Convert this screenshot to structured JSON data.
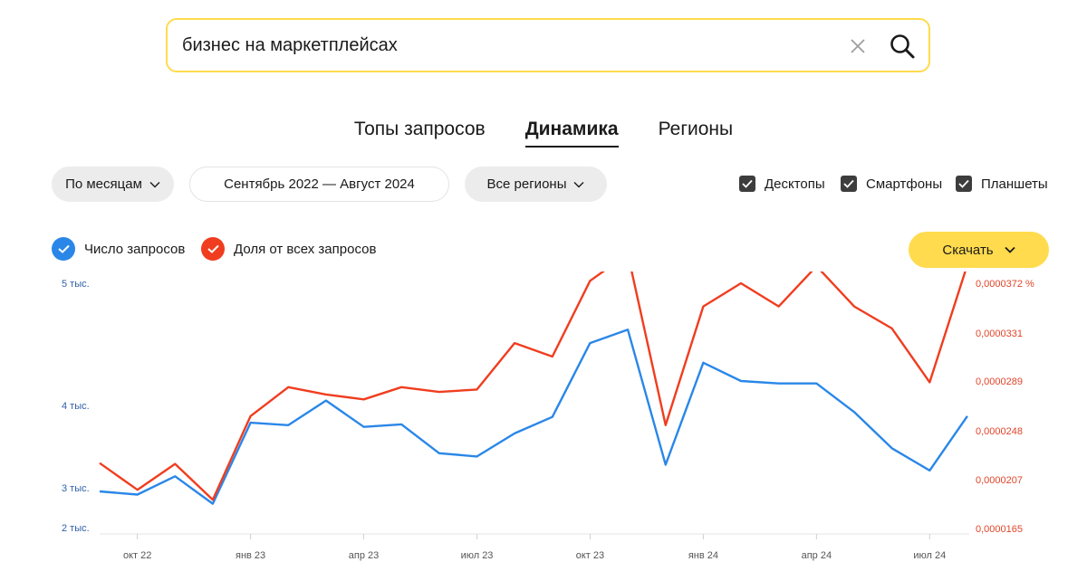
{
  "search": {
    "query": "бизнес на маркетплейсах"
  },
  "tabs": [
    {
      "label": "Топы запросов",
      "active": false
    },
    {
      "label": "Динамика",
      "active": true
    },
    {
      "label": "Регионы",
      "active": false
    }
  ],
  "filters": {
    "period_label": "По месяцам",
    "date_range": "Сентябрь 2022 — Август 2024",
    "region_label": "Все регионы"
  },
  "devices": [
    {
      "label": "Десктопы",
      "checked": true
    },
    {
      "label": "Смартфоны",
      "checked": true
    },
    {
      "label": "Планшеты",
      "checked": true
    }
  ],
  "legend": {
    "requests_label": "Число запросов",
    "share_label": "Доля от всех запросов"
  },
  "download_label": "Скачать",
  "colors": {
    "accent": "#ffdb4d",
    "requests": "#2a87e8",
    "share": "#f03d1f"
  },
  "chart_data": {
    "type": "line",
    "x": [
      "2022-09",
      "2022-10",
      "2022-11",
      "2022-12",
      "2023-01",
      "2023-02",
      "2023-03",
      "2023-04",
      "2023-05",
      "2023-06",
      "2023-07",
      "2023-08",
      "2023-09",
      "2023-10",
      "2023-11",
      "2023-12",
      "2024-01",
      "2024-02",
      "2024-03",
      "2024-04",
      "2024-05",
      "2024-06",
      "2024-07",
      "2024-08"
    ],
    "x_tick_labels": [
      {
        "x": "2022-10",
        "label": "окт 22"
      },
      {
        "x": "2023-01",
        "label": "янв 23"
      },
      {
        "x": "2023-04",
        "label": "апр 23"
      },
      {
        "x": "2023-07",
        "label": "июл 23"
      },
      {
        "x": "2023-10",
        "label": "окт 23"
      },
      {
        "x": "2024-01",
        "label": "янв 24"
      },
      {
        "x": "2024-04",
        "label": "апр 24"
      },
      {
        "x": "2024-07",
        "label": "июл 24"
      }
    ],
    "y_left": {
      "ticks": [
        {
          "value": 5000,
          "label": "5 тыс."
        },
        {
          "value": 4000,
          "label": "4 тыс."
        },
        {
          "value": 3000,
          "label": "3 тыс."
        },
        {
          "value": 2000,
          "label": "2 тыс."
        }
      ]
    },
    "y_right": {
      "ticks": [
        {
          "value": 3.72e-05,
          "label": "0,0000372 %"
        },
        {
          "value": 3.31e-05,
          "label": "0,0000331"
        },
        {
          "value": 2.89e-05,
          "label": "0,0000289"
        },
        {
          "value": 2.48e-05,
          "label": "0,0000248"
        },
        {
          "value": 2.07e-05,
          "label": "0,0000207"
        },
        {
          "value": 1.65e-05,
          "label": "0,0000165"
        }
      ]
    },
    "series": [
      {
        "name": "Число запросов",
        "axis": "left",
        "values": [
          2910,
          2830,
          3140,
          2600,
          3790,
          3760,
          4040,
          3740,
          3770,
          3420,
          3380,
          3660,
          3860,
          4510,
          4620,
          3280,
          4350,
          4200,
          4180,
          4180,
          3920,
          3480,
          3210,
          3870
        ]
      },
      {
        "name": "Доля от всех запросов",
        "axis": "left",
        "values": [
          3300,
          2950,
          3290,
          2700,
          3870,
          4150,
          4090,
          4050,
          4150,
          4110,
          4130,
          4510,
          4400,
          5020,
          5240,
          3760,
          4810,
          5000,
          4810,
          5140,
          4810,
          4630,
          4190,
          5150
        ]
      }
    ]
  }
}
